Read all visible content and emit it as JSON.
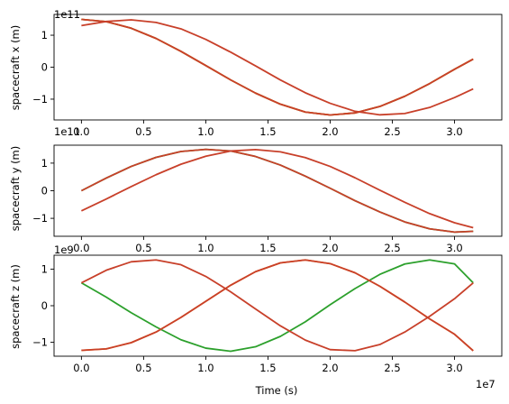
{
  "chart_data": [
    {
      "type": "line",
      "ylabel": "spacecraft x (m)",
      "xlabel": "",
      "x_offset_label": "",
      "y_offset_label": "1e11",
      "xlim": [
        -2.2,
        33.8
      ],
      "ylim": [
        -1.65,
        1.65
      ],
      "x_ticks": [
        0,
        5,
        10,
        15,
        20,
        25,
        30
      ],
      "x_tick_labels": [
        "0.0",
        "0.5",
        "1.0",
        "1.5",
        "2.0",
        "2.5",
        "3.0"
      ],
      "y_ticks": [
        -1,
        0,
        1
      ],
      "y_tick_labels": [
        "−1",
        "0",
        "1"
      ],
      "series": [
        {
          "color": "#2ca02c",
          "x": [
            0,
            2,
            4,
            6,
            8,
            10,
            12,
            14,
            16,
            18,
            20,
            22,
            24,
            26,
            28,
            30,
            31.5
          ],
          "y": [
            1.496,
            1.425,
            1.219,
            0.899,
            0.496,
            0.051,
            -0.398,
            -0.811,
            -1.157,
            -1.403,
            -1.496,
            -1.43,
            -1.228,
            -0.91,
            -0.512,
            -0.066,
            0.253
          ]
        },
        {
          "color": "#ff7f0e",
          "x": [
            0,
            2,
            4,
            6,
            8,
            10,
            12,
            14,
            16,
            18,
            20,
            22,
            24,
            26,
            28,
            30,
            31.5
          ],
          "y": [
            1.496,
            1.425,
            1.219,
            0.899,
            0.496,
            0.051,
            -0.398,
            -0.811,
            -1.157,
            -1.403,
            -1.496,
            -1.43,
            -1.228,
            -0.91,
            -0.512,
            -0.066,
            0.253
          ]
        },
        {
          "color": "#c8402a",
          "x": [
            0,
            2,
            4,
            6,
            8,
            10,
            12,
            14,
            16,
            18,
            20,
            22,
            24,
            26,
            28,
            30,
            31.5
          ],
          "y": [
            1.3,
            1.43,
            1.48,
            1.4,
            1.2,
            0.87,
            0.47,
            0.04,
            -0.4,
            -0.8,
            -1.13,
            -1.38,
            -1.49,
            -1.45,
            -1.26,
            -0.95,
            -0.68
          ]
        },
        {
          "color": "#c8402a",
          "x": [
            0,
            2,
            4,
            6,
            8,
            10,
            12,
            14,
            16,
            18,
            20,
            22,
            24,
            26,
            28,
            30,
            31.5
          ],
          "y": [
            1.496,
            1.425,
            1.219,
            0.899,
            0.496,
            0.051,
            -0.398,
            -0.811,
            -1.157,
            -1.403,
            -1.496,
            -1.43,
            -1.228,
            -0.91,
            -0.512,
            -0.066,
            0.253
          ]
        }
      ]
    },
    {
      "type": "line",
      "ylabel": "spacecraft y (m)",
      "xlabel": "",
      "x_offset_label": "",
      "y_offset_label": "1e11",
      "xlim": [
        -2.2,
        33.8
      ],
      "ylim": [
        -1.65,
        1.65
      ],
      "x_ticks": [
        0,
        5,
        10,
        15,
        20,
        25,
        30
      ],
      "x_tick_labels": [
        "0.0",
        "0.5",
        "1.0",
        "1.5",
        "2.0",
        "2.5",
        "3.0"
      ],
      "y_ticks": [
        -1,
        0,
        1
      ],
      "y_tick_labels": [
        "−1",
        "0",
        "1"
      ],
      "series": [
        {
          "color": "#2ca02c",
          "x": [
            0,
            2,
            4,
            6,
            8,
            10,
            12,
            14,
            16,
            18,
            20,
            22,
            24,
            26,
            28,
            30,
            31.5
          ],
          "y": [
            0.0,
            0.46,
            0.88,
            1.21,
            1.42,
            1.5,
            1.44,
            1.24,
            0.93,
            0.53,
            0.09,
            -0.36,
            -0.77,
            -1.13,
            -1.38,
            -1.5,
            -1.47
          ]
        },
        {
          "color": "#c8402a",
          "x": [
            0,
            2,
            4,
            6,
            8,
            10,
            12,
            14,
            16,
            18,
            20,
            22,
            24,
            26,
            28,
            30,
            31.5
          ],
          "y": [
            -0.73,
            -0.3,
            0.15,
            0.58,
            0.96,
            1.25,
            1.44,
            1.49,
            1.41,
            1.2,
            0.88,
            0.47,
            0.02,
            -0.42,
            -0.83,
            -1.16,
            -1.34
          ]
        },
        {
          "color": "#c8402a",
          "x": [
            0,
            2,
            4,
            6,
            8,
            10,
            12,
            14,
            16,
            18,
            20,
            22,
            24,
            26,
            28,
            30,
            31.5
          ],
          "y": [
            0.0,
            0.46,
            0.88,
            1.21,
            1.42,
            1.5,
            1.44,
            1.24,
            0.93,
            0.53,
            0.09,
            -0.36,
            -0.77,
            -1.13,
            -1.38,
            -1.5,
            -1.47
          ]
        }
      ]
    },
    {
      "type": "line",
      "ylabel": "spacecraft z (m)",
      "xlabel": "Time (s)",
      "x_offset_label": "1e7",
      "y_offset_label": "1e9",
      "xlim": [
        -2.2,
        33.8
      ],
      "ylim": [
        -1.38,
        1.38
      ],
      "x_ticks": [
        0,
        5,
        10,
        15,
        20,
        25,
        30
      ],
      "x_tick_labels": [
        "0.0",
        "0.5",
        "1.0",
        "1.5",
        "2.0",
        "2.5",
        "3.0"
      ],
      "y_ticks": [
        -1,
        0,
        1
      ],
      "y_tick_labels": [
        "−1",
        "0",
        "1"
      ],
      "series": [
        {
          "color": "#2ca02c",
          "x": [
            0,
            2,
            4,
            6,
            8,
            10,
            12,
            14,
            16,
            18,
            20,
            22,
            24,
            26,
            28,
            30,
            31.5
          ],
          "y": [
            0.625,
            0.234,
            -0.191,
            -0.579,
            -0.93,
            -1.16,
            -1.245,
            -1.122,
            -0.838,
            -0.44,
            0.028,
            0.469,
            0.857,
            1.14,
            1.25,
            1.143,
            0.625
          ]
        },
        {
          "color": "#ff7f0e",
          "x": [
            0,
            2,
            4,
            6,
            8,
            10,
            12,
            14,
            16,
            18,
            20,
            22,
            24,
            26,
            28,
            30,
            31.5
          ],
          "y": [
            -1.22,
            -1.18,
            -1.01,
            -0.72,
            -0.32,
            0.12,
            0.56,
            0.93,
            1.17,
            1.25,
            1.15,
            0.9,
            0.53,
            0.1,
            -0.36,
            -0.78,
            -1.23
          ]
        },
        {
          "color": "#c8402a",
          "x": [
            0,
            2,
            4,
            6,
            8,
            10,
            12,
            14,
            16,
            18,
            20,
            22,
            24,
            26,
            28,
            30,
            31.5
          ],
          "y": [
            0.625,
            0.97,
            1.2,
            1.25,
            1.12,
            0.8,
            0.38,
            -0.09,
            -0.55,
            -0.94,
            -1.2,
            -1.23,
            -1.06,
            -0.72,
            -0.29,
            0.19,
            0.625
          ]
        },
        {
          "color": "#c8402a",
          "x": [
            0,
            2,
            4,
            6,
            8,
            10,
            12,
            14,
            16,
            18,
            20,
            22,
            24,
            26,
            28,
            30,
            31.5
          ],
          "y": [
            -1.22,
            -1.18,
            -1.01,
            -0.72,
            -0.32,
            0.12,
            0.56,
            0.93,
            1.17,
            1.25,
            1.15,
            0.9,
            0.53,
            0.1,
            -0.36,
            -0.78,
            -1.23
          ]
        }
      ]
    }
  ]
}
